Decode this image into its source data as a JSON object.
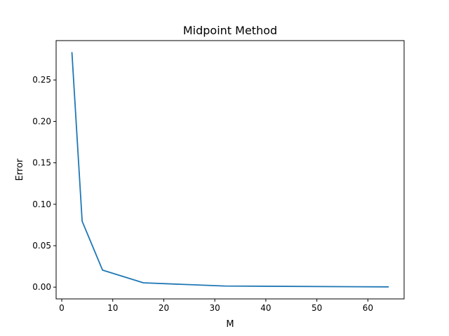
{
  "chart_data": {
    "type": "line",
    "title": "Midpoint Method",
    "xlabel": "M",
    "ylabel": "Error",
    "xlim": [
      -1.1,
      67.1
    ],
    "ylim": [
      -0.0142,
      0.2975
    ],
    "xticks": [
      0,
      10,
      20,
      30,
      40,
      50,
      60
    ],
    "xtick_labels": [
      "0",
      "10",
      "20",
      "30",
      "40",
      "50",
      "60"
    ],
    "yticks": [
      0.0,
      0.05,
      0.1,
      0.15,
      0.2,
      0.25
    ],
    "ytick_labels": [
      "0.00",
      "0.05",
      "0.10",
      "0.15",
      "0.20",
      "0.25"
    ],
    "grid": false,
    "series": [
      {
        "color": "#1f77b4",
        "x": [
          2,
          4,
          8,
          16,
          32,
          64
        ],
        "y": [
          0.283,
          0.0795,
          0.0205,
          0.0052,
          0.0013,
          0.0003
        ]
      }
    ]
  }
}
